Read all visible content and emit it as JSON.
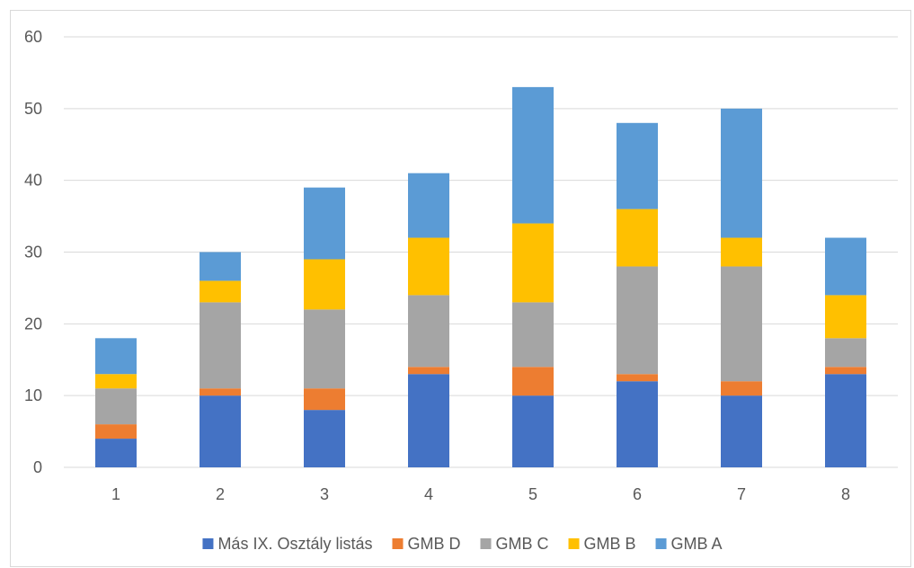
{
  "chart_data": {
    "type": "bar",
    "stacked": true,
    "title": "",
    "xlabel": "",
    "ylabel": "",
    "categories": [
      "1",
      "2",
      "3",
      "4",
      "5",
      "6",
      "7",
      "8"
    ],
    "ylim": [
      0,
      60
    ],
    "yticks": [
      "0",
      "10",
      "20",
      "30",
      "40",
      "50",
      "60"
    ],
    "grid": true,
    "legend_position": "bottom",
    "series": [
      {
        "name": "Más IX. Osztály listás",
        "color": "#4472c4",
        "values": [
          4,
          10,
          8,
          13,
          10,
          12,
          10,
          13
        ]
      },
      {
        "name": "GMB D",
        "color": "#ed7d31",
        "values": [
          2,
          1,
          3,
          1,
          4,
          1,
          2,
          1
        ]
      },
      {
        "name": "GMB C",
        "color": "#a5a5a5",
        "values": [
          5,
          12,
          11,
          10,
          9,
          15,
          16,
          4
        ]
      },
      {
        "name": "GMB B",
        "color": "#ffc000",
        "values": [
          2,
          3,
          7,
          8,
          11,
          8,
          4,
          6
        ]
      },
      {
        "name": "GMB A",
        "color": "#5b9bd5",
        "values": [
          5,
          4,
          10,
          9,
          19,
          12,
          18,
          8
        ]
      }
    ]
  }
}
